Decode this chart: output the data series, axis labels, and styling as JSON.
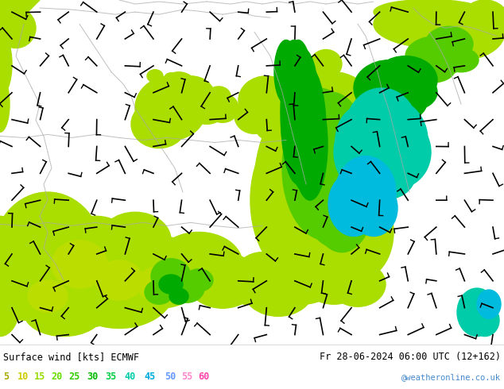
{
  "title_left": "Surface wind [kts] ECMWF",
  "title_right": "Fr 28-06-2024 06:00 UTC (12+162)",
  "credit": "@weatheronline.co.uk",
  "legend_values": [
    "5",
    "10",
    "15",
    "20",
    "25",
    "30",
    "35",
    "40",
    "45",
    "50",
    "55",
    "60"
  ],
  "legend_colors": [
    "#aaaa00",
    "#cccc00",
    "#99dd00",
    "#66dd00",
    "#33cc00",
    "#00bb00",
    "#00cc44",
    "#00ccaa",
    "#00aadd",
    "#6699ff",
    "#ff88cc",
    "#ff44aa"
  ],
  "figsize": [
    6.34,
    4.9
  ],
  "dpi": 100,
  "map_yellow": "#e8e000",
  "map_lyellow": "#d4d400",
  "map_lgreen": "#aadd00",
  "map_green": "#55cc00",
  "map_dgreen": "#00aa00",
  "map_teal": "#00ccaa",
  "map_cyan": "#00bbdd",
  "border_color": "#aaaaaa"
}
